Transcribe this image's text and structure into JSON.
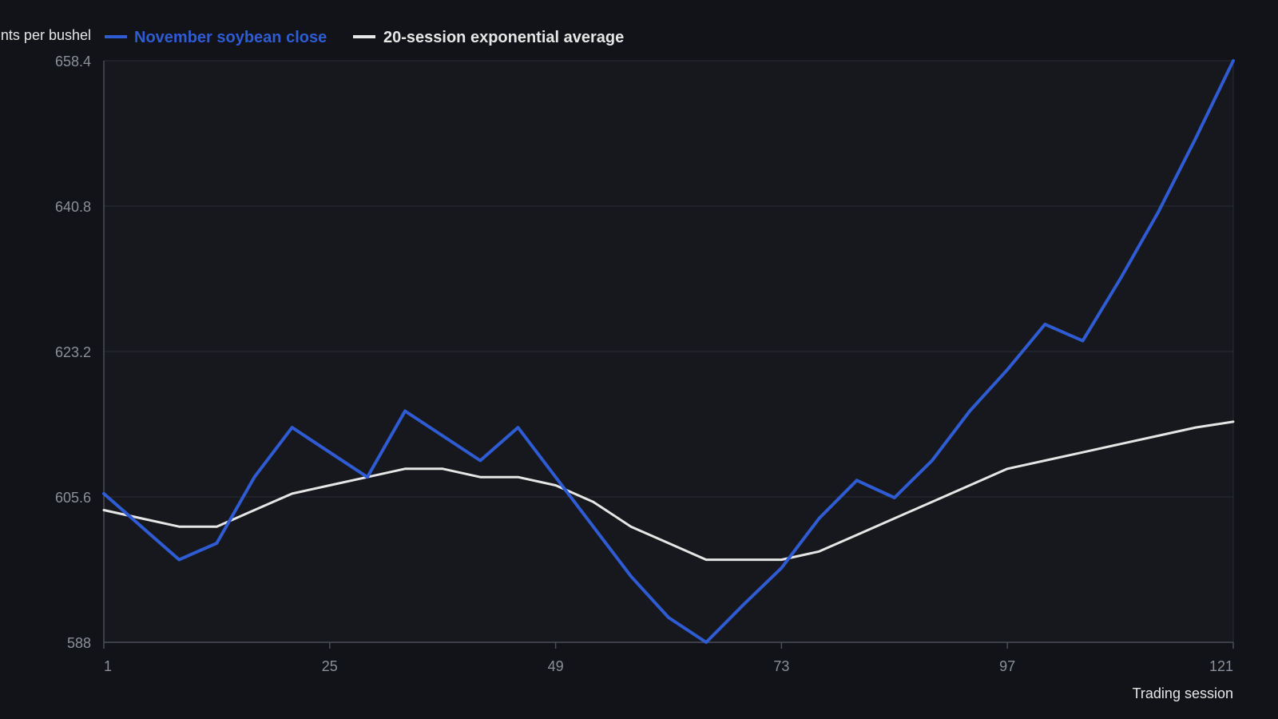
{
  "chart_data": {
    "type": "line",
    "ylabel": "Cents per bushel",
    "xlabel": "Trading session",
    "x_ticks": [
      1,
      25,
      49,
      73,
      97,
      121
    ],
    "y_ticks": [
      588,
      605.6,
      623.2,
      640.8,
      658.4
    ],
    "y_tick_labels": [
      "588",
      "605.6",
      "623.2",
      "640.8",
      "658.4"
    ],
    "xlim": [
      1,
      121
    ],
    "ylim": [
      588,
      658.4
    ],
    "grid": true,
    "legend_position": "top-left",
    "x": [
      1,
      5,
      9,
      13,
      17,
      21,
      25,
      29,
      33,
      37,
      41,
      45,
      49,
      53,
      57,
      61,
      65,
      69,
      73,
      77,
      81,
      85,
      89,
      93,
      97,
      101,
      105,
      109,
      113,
      117,
      121
    ],
    "series": [
      {
        "name": "November soybean close",
        "color": "#2f5bd3",
        "values": [
          606.0,
          602.0,
          598.0,
          600.0,
          608.0,
          614.0,
          611.0,
          608.0,
          616.0,
          613.0,
          610.0,
          614.0,
          608.0,
          602.0,
          596.0,
          591.0,
          588.0,
          592.6,
          597.0,
          603.0,
          607.6,
          605.5,
          610.0,
          616.0,
          621.0,
          626.5,
          624.5,
          632.0,
          640.0,
          649.0,
          658.4
        ]
      },
      {
        "name": "20-session exponential average",
        "color": "#e6e6e6",
        "values": [
          604.0,
          603.0,
          602.0,
          602.0,
          604.0,
          606.0,
          607.0,
          608.0,
          609.0,
          609.0,
          608.0,
          608.0,
          607.0,
          605.0,
          602.0,
          600.0,
          598.0,
          598.0,
          598.0,
          599.0,
          601.0,
          603.0,
          605.0,
          607.0,
          609.0,
          610.0,
          611.0,
          612.0,
          613.0,
          614.0,
          614.7
        ]
      }
    ]
  }
}
